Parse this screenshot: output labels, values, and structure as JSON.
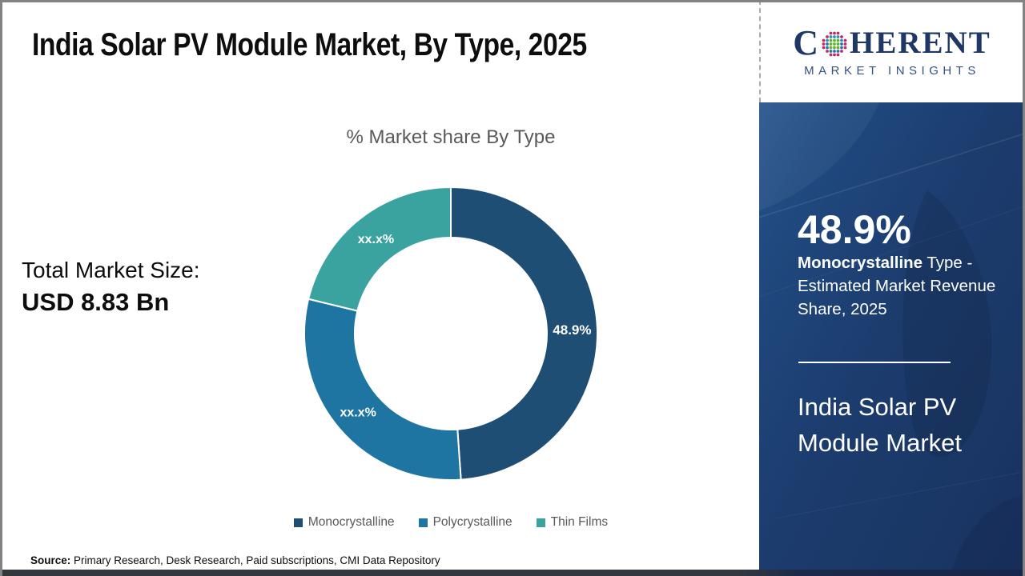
{
  "title": "India Solar PV Module Market, By Type, 2025",
  "logo": {
    "brand_c": "C",
    "brand_rest": "HERENT",
    "tagline": "MARKET INSIGHTS",
    "wordmark_color": "#1E3765",
    "tagline_color": "#33527E"
  },
  "left_panel": {
    "total_label": "Total Market Size:",
    "total_value": "USD 8.83 Bn"
  },
  "chart": {
    "title": "% Market share By Type"
  },
  "chart_data": {
    "type": "pie",
    "style": "donut",
    "title": "% Market share By Type",
    "categories": [
      "Monocrystalline",
      "Polycrystalline",
      "Thin Films"
    ],
    "values": [
      48.9,
      29.9,
      21.2
    ],
    "displayed_labels": [
      "48.9%",
      "xx.x%",
      "xx.x%"
    ],
    "colors": [
      "#1F4E74",
      "#1E75A1",
      "#3AA3A0"
    ],
    "legend_position": "bottom",
    "start_angle_deg": 0,
    "direction": "clockwise",
    "inner_radius_ratio": 0.655,
    "values_note": "Only the Monocrystalline share (48.9%) is printed; the other two labels are masked as xx.x% in the image and their numeric values are estimated from arc angles"
  },
  "sidebar": {
    "bg_color": "#1C3C6E",
    "stat_value": "48.9%",
    "stat_bold": "Monocrystalline",
    "stat_rest": " Type - Estimated Market Revenue Share, 2025",
    "market_name_line1": "India Solar PV",
    "market_name_line2": "Module Market"
  },
  "source": {
    "label": "Source:",
    "text": " Primary Research, Desk Research, Paid subscriptions, CMI Data Repository"
  }
}
